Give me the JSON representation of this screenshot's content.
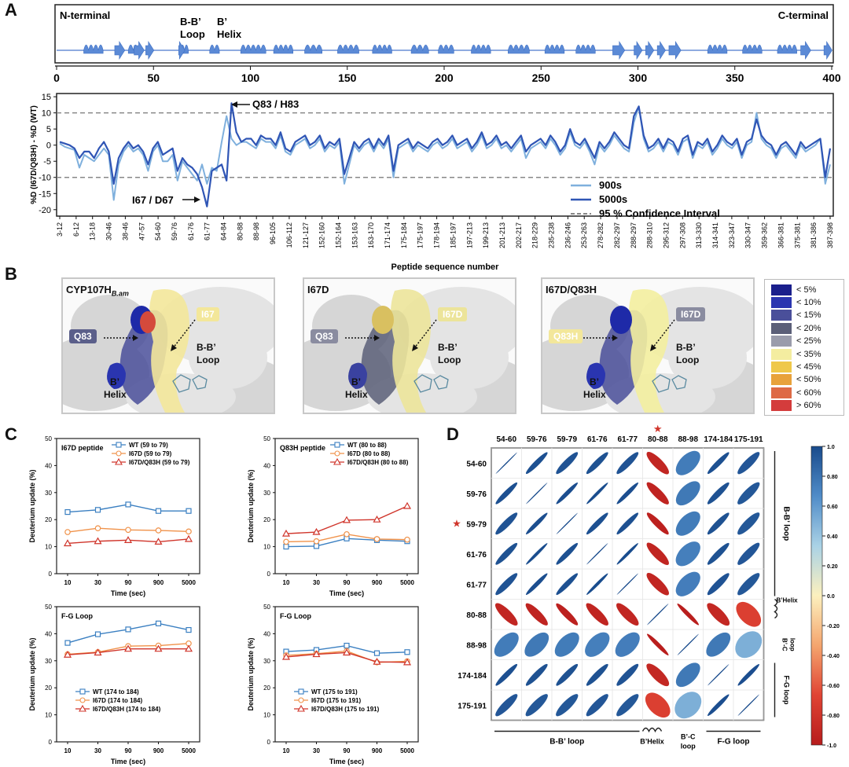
{
  "panels": {
    "a": "A",
    "b": "B",
    "c": "C",
    "d": "D"
  },
  "topology": {
    "n_label": "N-terminal",
    "c_label": "C-terminal",
    "loop_label_1": "B-B’",
    "loop_label_2": "Loop",
    "helix_label_1": "B’",
    "helix_label_2": "Helix",
    "axis_ticks": [
      "0",
      "50",
      "100",
      "150",
      "200",
      "250",
      "300",
      "350",
      "400"
    ]
  },
  "chart_data": [
    {
      "id": "diff_plot",
      "type": "line",
      "ylabel": "%D (I67D/Q83H) - %D (WT)",
      "xlabel": "Peptide sequence number",
      "ylim": [
        -22,
        16
      ],
      "yticks": [
        "15",
        "10",
        "5",
        "0",
        "-5",
        "-10",
        "-15",
        "-20"
      ],
      "x_tick_labels": [
        "3-12",
        "6-12",
        "13-18",
        "30-46",
        "38-46",
        "47-57",
        "54-60",
        "59-76",
        "61-76",
        "61-77",
        "64-84",
        "80-88",
        "88-98",
        "96-105",
        "106-112",
        "121-127",
        "152-160",
        "152-164",
        "153-163",
        "163-170",
        "171-174",
        "175-184",
        "175-197",
        "178-194",
        "185-197",
        "197-213",
        "199-213",
        "201-213",
        "202-217",
        "218-229",
        "235-238",
        "236-246",
        "253-263",
        "278-282",
        "282-297",
        "288-297",
        "288-310",
        "295-312",
        "297-308",
        "313-330",
        "314-341",
        "323-347",
        "330-347",
        "359-362",
        "366-381",
        "375-381",
        "381-386",
        "387-398"
      ],
      "confidence_interval": [
        10,
        -10
      ],
      "annotations": [
        "Q83 / H83",
        "I67 / D67"
      ],
      "legend": {
        "s900": "900s",
        "s5000": "5000s",
        "ci": "95 % Confidence Interval"
      },
      "series": [
        {
          "name": "900s",
          "color": "#7fb0dd",
          "values": [
            0.5,
            -0.5,
            -1,
            -1.5,
            -7,
            -3,
            -4,
            -5,
            -3,
            -1,
            -3,
            -17,
            -6,
            -2,
            0,
            -2,
            -1,
            -3,
            -8,
            -2,
            0,
            -5,
            -5,
            -3,
            -11,
            -5,
            -7,
            -9,
            -11,
            -6,
            -12,
            -7,
            -8,
            1,
            9,
            2,
            0,
            1,
            1,
            0,
            -1,
            2,
            1,
            1,
            -1,
            3,
            -2,
            -3,
            0,
            1,
            2,
            -1,
            0,
            2,
            -2,
            0,
            -1,
            1,
            -12,
            -6,
            0,
            -2,
            0,
            1,
            -2,
            1,
            -1,
            2,
            -10,
            -1,
            0,
            1,
            -2,
            0,
            -1,
            -2,
            0,
            1,
            -1,
            0,
            2,
            -1,
            0,
            1,
            -2,
            0,
            3,
            -1,
            0,
            2,
            -1,
            0,
            -2,
            0,
            2,
            -4,
            -1,
            0,
            1,
            -1,
            2,
            0,
            -3,
            -1,
            4,
            0,
            -1,
            1,
            -2,
            -6,
            0,
            -2,
            0,
            3,
            1,
            -1,
            -2,
            7,
            12,
            2,
            -2,
            -1,
            1,
            -2,
            1,
            0,
            -3,
            1,
            2,
            -4,
            0,
            -1,
            1,
            -3,
            -1,
            2,
            0,
            -1,
            1,
            -4,
            0,
            1,
            10,
            2,
            0,
            -1,
            -4,
            -1,
            0,
            -2,
            -4,
            0,
            -2,
            -1,
            0,
            2,
            -12,
            -6
          ]
        },
        {
          "name": "5000s",
          "color": "#2f55b5",
          "values": [
            1,
            0.5,
            0,
            -1,
            -4,
            -2,
            -2,
            -4,
            -1,
            1,
            -2,
            -12,
            -4,
            -1,
            1,
            -1,
            0,
            -2,
            -6,
            -1,
            1,
            -3,
            -2,
            -1,
            -8,
            -4,
            -6,
            -7,
            -9,
            -13,
            -19,
            -8,
            -7,
            -6,
            -11,
            13,
            4,
            1,
            2,
            2,
            0,
            3,
            2,
            2,
            0,
            4,
            -1,
            -2,
            1,
            2,
            3,
            0,
            1,
            3,
            -1,
            1,
            0,
            2,
            -9,
            -4,
            1,
            -1,
            1,
            2,
            -1,
            2,
            0,
            3,
            -8,
            0,
            1,
            2,
            -1,
            1,
            0,
            -1,
            1,
            2,
            0,
            1,
            3,
            0,
            1,
            2,
            -1,
            1,
            4,
            0,
            1,
            3,
            0,
            1,
            -1,
            1,
            3,
            -2,
            0,
            1,
            2,
            0,
            3,
            1,
            -2,
            0,
            5,
            1,
            0,
            2,
            -1,
            -4,
            1,
            -1,
            1,
            4,
            2,
            0,
            -1,
            9,
            12,
            3,
            -1,
            0,
            2,
            -1,
            2,
            1,
            -2,
            2,
            3,
            -3,
            1,
            0,
            2,
            -2,
            0,
            3,
            1,
            0,
            2,
            -3,
            1,
            2,
            8,
            3,
            1,
            0,
            -3,
            0,
            1,
            -1,
            -3,
            1,
            -1,
            0,
            1,
            2,
            -10,
            -1
          ]
        }
      ]
    },
    {
      "id": "c1",
      "type": "line",
      "title": "I67D peptide",
      "categories": [
        "10",
        "30",
        "90",
        "900",
        "5000"
      ],
      "xlabel": "Time (sec)",
      "ylabel": "Deuterium update (%)",
      "ylim": [
        0,
        50
      ],
      "yticks": [
        "0",
        "10",
        "20",
        "30",
        "40",
        "50"
      ],
      "series": [
        {
          "name": "WT (59 to 79)",
          "color": "#3a7fc1",
          "marker": "square",
          "values": [
            22.8,
            23.6,
            25.6,
            23.2,
            23.2
          ]
        },
        {
          "name": "I67D (59 to 79)",
          "color": "#f0924a",
          "marker": "circle",
          "values": [
            15.4,
            16.8,
            16.2,
            16.0,
            15.6
          ]
        },
        {
          "name": "I67D/Q83H (59 to 79)",
          "color": "#d0352b",
          "marker": "triangle",
          "values": [
            11.2,
            12.0,
            12.4,
            11.8,
            12.8
          ]
        }
      ]
    },
    {
      "id": "c2",
      "type": "line",
      "title": "Q83H peptide",
      "categories": [
        "10",
        "30",
        "90",
        "900",
        "5000"
      ],
      "xlabel": "Time (sec)",
      "ylabel": "Deuterium update (%)",
      "ylim": [
        0,
        50
      ],
      "yticks": [
        "0",
        "10",
        "20",
        "30",
        "40",
        "50"
      ],
      "series": [
        {
          "name": "WT (80 to 88)",
          "color": "#3a7fc1",
          "marker": "square",
          "values": [
            10.0,
            10.2,
            13.0,
            12.4,
            12.0
          ]
        },
        {
          "name": "I67D (80 to 88)",
          "color": "#f0924a",
          "marker": "circle",
          "values": [
            11.8,
            12.0,
            14.6,
            12.8,
            12.6
          ]
        },
        {
          "name": "I67D/Q83H (80 to 88)",
          "color": "#d0352b",
          "marker": "triangle",
          "values": [
            14.8,
            15.4,
            19.8,
            20.0,
            25.0
          ]
        }
      ]
    },
    {
      "id": "c3",
      "type": "line",
      "title": "F-G Loop",
      "categories": [
        "10",
        "30",
        "90",
        "900",
        "5000"
      ],
      "xlabel": "Time (sec)",
      "ylabel": "Deuterium update (%)",
      "ylim": [
        0,
        50
      ],
      "yticks": [
        "0",
        "10",
        "20",
        "30",
        "40",
        "50"
      ],
      "series": [
        {
          "name": "WT (174 to 184)",
          "color": "#3a7fc1",
          "marker": "square",
          "values": [
            36.6,
            39.8,
            41.6,
            43.8,
            41.4
          ]
        },
        {
          "name": "I67D (174 to 184)",
          "color": "#f0924a",
          "marker": "circle",
          "values": [
            32.4,
            33.2,
            35.4,
            35.6,
            36.4
          ]
        },
        {
          "name": "I67D/Q83H (174 to 184)",
          "color": "#d0352b",
          "marker": "triangle",
          "values": [
            32.2,
            33.0,
            34.4,
            34.4,
            34.4
          ]
        }
      ]
    },
    {
      "id": "c4",
      "type": "line",
      "title": "F-G Loop",
      "categories": [
        "10",
        "30",
        "90",
        "900",
        "5000"
      ],
      "xlabel": "Time (sec)",
      "ylabel": "Deuterium update (%)",
      "ylim": [
        0,
        50
      ],
      "yticks": [
        "0",
        "10",
        "20",
        "30",
        "40",
        "50"
      ],
      "series": [
        {
          "name": "WT (175 to 191)",
          "color": "#3a7fc1",
          "marker": "square",
          "values": [
            33.4,
            34.0,
            35.6,
            32.8,
            33.2
          ]
        },
        {
          "name": "I67D (175 to 191)",
          "color": "#f0924a",
          "marker": "circle",
          "values": [
            32.0,
            32.6,
            33.6,
            29.4,
            29.8
          ]
        },
        {
          "name": "I67D/Q83H (175 to 191)",
          "color": "#d0352b",
          "marker": "triangle",
          "values": [
            31.4,
            32.4,
            33.0,
            29.6,
            29.4
          ]
        }
      ]
    },
    {
      "id": "corr",
      "type": "heatmap",
      "labels": [
        "54-60",
        "59-76",
        "59-79",
        "61-76",
        "61-77",
        "80-88",
        "88-98",
        "174-184",
        "175-191"
      ],
      "starred_row": "59-79",
      "starred_col": "80-88",
      "colorbar_ticks": [
        "1.0",
        "0.80",
        "0.60",
        "0.40",
        "0.20",
        "0.0",
        "-0.20",
        "-0.40",
        "-0.60",
        "-0.80",
        "-1.0"
      ],
      "matrix": [
        [
          1.0,
          0.97,
          0.95,
          0.96,
          0.95,
          -0.9,
          0.7,
          0.97,
          0.93
        ],
        [
          0.97,
          1.0,
          0.98,
          0.99,
          0.98,
          -0.92,
          0.72,
          0.96,
          0.92
        ],
        [
          0.95,
          0.98,
          1.0,
          0.97,
          0.97,
          -0.95,
          0.7,
          0.96,
          0.92
        ],
        [
          0.96,
          0.99,
          0.97,
          1.0,
          0.99,
          -0.91,
          0.68,
          0.96,
          0.93
        ],
        [
          0.95,
          0.98,
          0.97,
          0.99,
          1.0,
          -0.9,
          0.69,
          0.95,
          0.92
        ],
        [
          -0.9,
          -0.92,
          -0.95,
          -0.91,
          -0.9,
          1.0,
          -0.98,
          -0.88,
          -0.65
        ],
        [
          0.7,
          0.72,
          0.7,
          0.68,
          0.69,
          -0.98,
          1.0,
          0.72,
          0.45
        ],
        [
          0.97,
          0.96,
          0.96,
          0.96,
          0.95,
          -0.88,
          0.72,
          1.0,
          0.98
        ],
        [
          0.93,
          0.92,
          0.92,
          0.93,
          0.92,
          -0.65,
          0.45,
          0.98,
          1.0
        ]
      ],
      "region_labels": {
        "bb_loop": "B-B’ loop",
        "bhelix": "B’Helix",
        "bc_1": "B’-C",
        "bc_2": "loop",
        "fg": "F-G loop"
      }
    }
  ],
  "structures": [
    {
      "title": "CYP107H",
      "title_sub": "B.am",
      "tag1": "Q83",
      "tag2": "I67",
      "loop": [
        "B-B’",
        "Loop"
      ],
      "helix": [
        "B’",
        "Helix"
      ]
    },
    {
      "title": "I67D",
      "title_sub": "",
      "tag1": "Q83",
      "tag2": "I67D",
      "loop": [
        "B-B’",
        "Loop"
      ],
      "helix": [
        "B’",
        "Helix"
      ]
    },
    {
      "title": "I67D/Q83H",
      "title_sub": "",
      "tag1": "Q83H",
      "tag2": "I67D",
      "loop": [
        "B-B’",
        "Loop"
      ],
      "helix": [
        "B’",
        "Helix"
      ]
    }
  ],
  "legend_b": [
    {
      "label": "< 5%",
      "color": "#1a1f8c"
    },
    {
      "label": "< 10%",
      "color": "#2a35b0"
    },
    {
      "label": "< 15%",
      "color": "#4a4f9a"
    },
    {
      "label": "< 20%",
      "color": "#5b5f78"
    },
    {
      "label": "< 25%",
      "color": "#9a9cab"
    },
    {
      "label": "< 35%",
      "color": "#f4eda0"
    },
    {
      "label": "< 45%",
      "color": "#efc84a"
    },
    {
      "label": "< 50%",
      "color": "#e8a23b"
    },
    {
      "label": "< 60%",
      "color": "#de6a45"
    },
    {
      "label": "> 60%",
      "color": "#d43c3c"
    }
  ]
}
